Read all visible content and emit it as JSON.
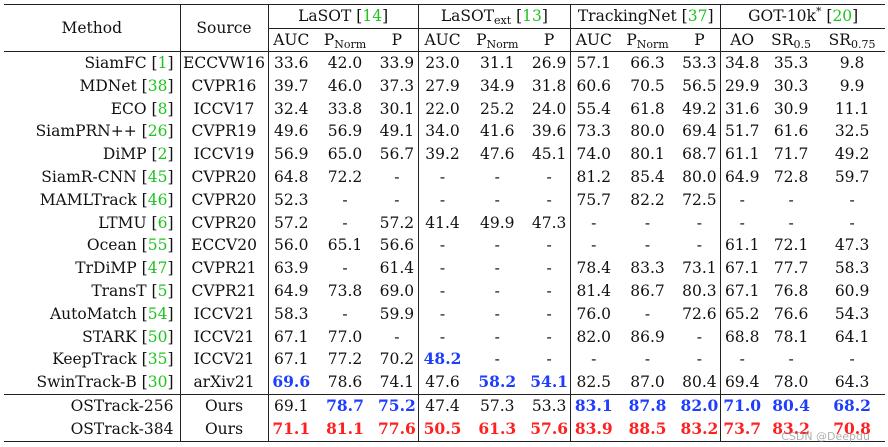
{
  "header": {
    "method": "Method",
    "source": "Source",
    "groups": [
      {
        "name": "LaSOT",
        "sub": "",
        "cite": "14",
        "metrics": [
          [
            "AUC",
            ""
          ],
          [
            "P",
            "Norm"
          ],
          [
            "P",
            ""
          ]
        ]
      },
      {
        "name": "LaSOT",
        "sub": "ext",
        "cite": "13",
        "metrics": [
          [
            "AUC",
            ""
          ],
          [
            "P",
            "Norm"
          ],
          [
            "P",
            ""
          ]
        ]
      },
      {
        "name": "TrackingNet",
        "sub": "",
        "cite": "37",
        "metrics": [
          [
            "AUC",
            ""
          ],
          [
            "P",
            "Norm"
          ],
          [
            "P",
            ""
          ]
        ]
      },
      {
        "name": "GOT-10k",
        "sup": "*",
        "cite": "20",
        "metrics": [
          [
            "AO",
            ""
          ],
          [
            "SR",
            "0.5"
          ],
          [
            "SR",
            "0.75"
          ]
        ]
      }
    ]
  },
  "rows": [
    {
      "m": "SiamFC",
      "c": "1",
      "s": "ECCVW16",
      "v": [
        "33.6",
        "42.0",
        "33.9",
        "23.0",
        "31.1",
        "26.9",
        "57.1",
        "66.3",
        "53.3",
        "34.8",
        "35.3",
        "9.8"
      ]
    },
    {
      "m": "MDNet",
      "c": "38",
      "s": "CVPR16",
      "v": [
        "39.7",
        "46.0",
        "37.3",
        "27.9",
        "34.9",
        "31.8",
        "60.6",
        "70.5",
        "56.5",
        "29.9",
        "30.3",
        "9.9"
      ]
    },
    {
      "m": "ECO",
      "c": "8",
      "s": "ICCV17",
      "v": [
        "32.4",
        "33.8",
        "30.1",
        "22.0",
        "25.2",
        "24.0",
        "55.4",
        "61.8",
        "49.2",
        "31.6",
        "30.9",
        "11.1"
      ]
    },
    {
      "m": "SiamPRN++",
      "c": "26",
      "s": "CVPR19",
      "v": [
        "49.6",
        "56.9",
        "49.1",
        "34.0",
        "41.6",
        "39.6",
        "73.3",
        "80.0",
        "69.4",
        "51.7",
        "61.6",
        "32.5"
      ]
    },
    {
      "m": "DiMP",
      "c": "2",
      "s": "ICCV19",
      "v": [
        "56.9",
        "65.0",
        "56.7",
        "39.2",
        "47.6",
        "45.1",
        "74.0",
        "80.1",
        "68.7",
        "61.1",
        "71.7",
        "49.2"
      ]
    },
    {
      "m": "SiamR-CNN",
      "c": "45",
      "s": "CVPR20",
      "v": [
        "64.8",
        "72.2",
        "-",
        "-",
        "-",
        "-",
        "81.2",
        "85.4",
        "80.0",
        "64.9",
        "72.8",
        "59.7"
      ]
    },
    {
      "m": "MAMLTrack",
      "c": "46",
      "s": "CVPR20",
      "v": [
        "52.3",
        "-",
        "-",
        "-",
        "-",
        "-",
        "75.7",
        "82.2",
        "72.5",
        "-",
        "-",
        "-"
      ]
    },
    {
      "m": "LTMU",
      "c": "6",
      "s": "CVPR20",
      "v": [
        "57.2",
        "-",
        "57.2",
        "41.4",
        "49.9",
        "47.3",
        "-",
        "-",
        "-",
        "-",
        "-",
        "-"
      ]
    },
    {
      "m": "Ocean",
      "c": "55",
      "s": "ECCV20",
      "v": [
        "56.0",
        "65.1",
        "56.6",
        "-",
        "-",
        "-",
        "-",
        "-",
        "-",
        "61.1",
        "72.1",
        "47.3"
      ]
    },
    {
      "m": "TrDiMP",
      "c": "47",
      "s": "CVPR21",
      "v": [
        "63.9",
        "-",
        "61.4",
        "-",
        "-",
        "-",
        "78.4",
        "83.3",
        "73.1",
        "67.1",
        "77.7",
        "58.3"
      ]
    },
    {
      "m": "TransT",
      "c": "5",
      "s": "CVPR21",
      "v": [
        "64.9",
        "73.8",
        "69.0",
        "-",
        "-",
        "-",
        "81.4",
        "86.7",
        "80.3",
        "67.1",
        "76.8",
        "60.9"
      ]
    },
    {
      "m": "AutoMatch",
      "c": "54",
      "s": "ICCV21",
      "v": [
        "58.3",
        "-",
        "59.9",
        "-",
        "-",
        "-",
        "76.0",
        "-",
        "72.6",
        "65.2",
        "76.6",
        "54.3"
      ]
    },
    {
      "m": "STARK",
      "c": "50",
      "s": "ICCV21",
      "v": [
        "67.1",
        "77.0",
        "-",
        "-",
        "-",
        "-",
        "82.0",
        "86.9",
        "-",
        "68.8",
        "78.1",
        "64.1"
      ]
    },
    {
      "m": "KeepTrack",
      "c": "35",
      "s": "ICCV21",
      "v": [
        "67.1",
        "77.2",
        "70.2",
        "48.2",
        "-",
        "-",
        "-",
        "-",
        "-",
        "-",
        "-",
        "-"
      ]
    },
    {
      "m": "SwinTrack-B",
      "c": "30",
      "s": "arXiv21",
      "v": [
        "69.6",
        "78.6",
        "74.1",
        "47.6",
        "58.2",
        "54.1",
        "82.5",
        "87.0",
        "80.4",
        "69.4",
        "78.0",
        "64.3"
      ]
    },
    {
      "m": "OSTrack-256",
      "c": "",
      "s": "Ours",
      "v": [
        "69.1",
        "78.7",
        "75.2",
        "47.4",
        "57.3",
        "53.3",
        "83.1",
        "87.8",
        "82.0",
        "71.0",
        "80.4",
        "68.2"
      ]
    },
    {
      "m": "OSTrack-384",
      "c": "",
      "s": "Ours",
      "v": [
        "71.1",
        "81.1",
        "77.6",
        "50.5",
        "61.3",
        "57.6",
        "83.9",
        "88.5",
        "83.2",
        "73.7",
        "83.2",
        "70.8"
      ]
    }
  ],
  "highlights": {
    "red": [
      [
        16,
        0
      ],
      [
        16,
        1
      ],
      [
        16,
        2
      ],
      [
        16,
        3
      ],
      [
        16,
        4
      ],
      [
        16,
        5
      ],
      [
        16,
        6
      ],
      [
        16,
        7
      ],
      [
        16,
        8
      ],
      [
        16,
        9
      ],
      [
        16,
        10
      ],
      [
        16,
        11
      ]
    ],
    "blue": [
      [
        14,
        0
      ],
      [
        15,
        1
      ],
      [
        15,
        2
      ],
      [
        13,
        3
      ],
      [
        14,
        4
      ],
      [
        14,
        5
      ],
      [
        15,
        6
      ],
      [
        15,
        7
      ],
      [
        15,
        8
      ],
      [
        15,
        9
      ],
      [
        15,
        10
      ],
      [
        15,
        11
      ]
    ]
  },
  "colors": {
    "cite": "#1ec41e",
    "best": "#ff2020",
    "second": "#1f3dff"
  },
  "watermark": "CSDN @Deepdu"
}
